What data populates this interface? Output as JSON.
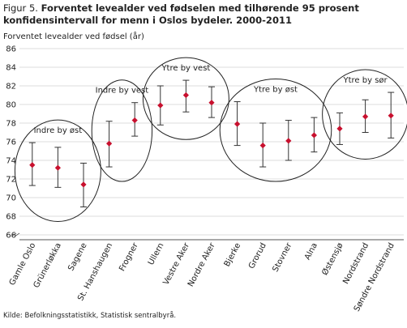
{
  "title": {
    "prefix": "Figur 5.",
    "text": "Forventet levealder ved fødselen med tilhørende 95 prosent konfidensintervall for menn i Oslos bydeler. 2000-2011"
  },
  "source": "Kilde: Befolkningsstatistikk, Statistisk sentralbyrå.",
  "chart_data": {
    "type": "scatter",
    "title": "Forventet levealder ved fødselen med tilhørende 95 prosent konfidensintervall for menn i Oslos bydeler. 2000-2011",
    "ylabel": "Forventet levealder ved fødsel (år)",
    "xlabel": "",
    "ylim": [
      66,
      86
    ],
    "y_ticks": [
      66,
      68,
      70,
      72,
      74,
      76,
      78,
      80,
      82,
      84,
      86
    ],
    "axis_break": true,
    "grid": true,
    "marker_color": "#c8102e",
    "categories": [
      "Gamle Oslo",
      "Grünerløkka",
      "Sagene",
      "St. Hanshaugen",
      "Frogner",
      "Ullern",
      "Vestre Aker",
      "Nordre Aker",
      "Bjerke",
      "Grorud",
      "Stovner",
      "Alna",
      "Østensjø",
      "Nordstrand",
      "Søndre Nordstrand"
    ],
    "values": [
      73.5,
      73.2,
      71.4,
      75.8,
      78.3,
      79.9,
      81.0,
      80.2,
      77.9,
      75.6,
      76.1,
      76.7,
      77.4,
      78.7,
      78.8
    ],
    "ci_low": [
      71.3,
      71.1,
      69.0,
      73.3,
      76.6,
      77.8,
      79.2,
      78.6,
      75.6,
      73.3,
      74.0,
      74.9,
      75.7,
      77.0,
      76.4
    ],
    "ci_high": [
      75.9,
      75.4,
      73.7,
      78.2,
      80.2,
      82.0,
      82.6,
      81.9,
      80.3,
      78.0,
      78.3,
      78.6,
      79.1,
      80.5,
      81.3
    ],
    "groups": [
      {
        "label": "Indre by øst",
        "members": [
          0,
          1,
          2
        ]
      },
      {
        "label": "Indre by vest",
        "members": [
          3,
          4
        ]
      },
      {
        "label": "Ytre by vest",
        "members": [
          5,
          6,
          7
        ]
      },
      {
        "label": "Ytre by øst",
        "members": [
          8,
          9,
          10,
          11
        ]
      },
      {
        "label": "Ytre by sør",
        "members": [
          12,
          13,
          14
        ]
      }
    ]
  }
}
